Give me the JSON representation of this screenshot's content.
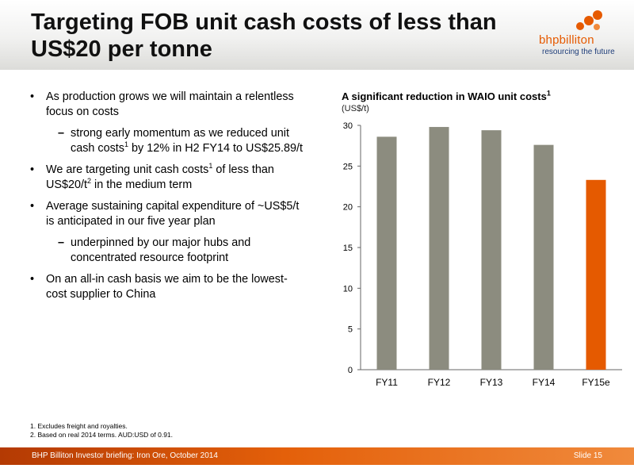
{
  "header": {
    "title_line1": "Targeting FOB unit cash costs of less than",
    "title_line2": "US$20 per tonne",
    "logo_name": "bhpbilliton",
    "logo_tagline": "resourcing the future"
  },
  "bullets": [
    {
      "pre": "As production grows we will maintain a relentless focus on costs"
    },
    {
      "pre": "strong early momentum as we reduced unit cash costs",
      "sup": "1",
      "post": " by 12% in H2 FY14 to US$25.89/t"
    },
    {
      "pre": "We are targeting unit cash costs",
      "sup": "1",
      "mid": " of less than US$20/t",
      "sup2": "2",
      "post": " in the medium term"
    },
    {
      "pre": "Average sustaining capital expenditure of ~US$5/t is anticipated in our five year plan"
    },
    {
      "pre": "underpinned by our major hubs and concentrated resource footprint"
    },
    {
      "pre": "On an all-in cash basis we aim to be the lowest-cost supplier to China"
    }
  ],
  "bullet_markers": {
    "level1": "•",
    "level2": "–"
  },
  "chart_data": {
    "type": "bar",
    "title": "A significant reduction in WAIO unit costs",
    "title_sup": "1",
    "ylabel": "(US$/t)",
    "categories": [
      "FY11",
      "FY12",
      "FY13",
      "FY14",
      "FY15e"
    ],
    "values": [
      28.6,
      29.8,
      29.4,
      27.6,
      23.3
    ],
    "ylim": [
      0,
      30
    ],
    "yticks": [
      0,
      5,
      10,
      15,
      20,
      25,
      30
    ],
    "grid": false,
    "colors": {
      "actual": "#8c8c7f",
      "estimate": "#e55a00"
    }
  },
  "footnotes": [
    "1.  Excludes freight and royalties.",
    "2.  Based on real 2014 terms. AUD:USD of 0.91."
  ],
  "footer": {
    "left": "BHP Billiton Investor briefing: Iron Ore, October 2014",
    "right": "Slide 15"
  }
}
